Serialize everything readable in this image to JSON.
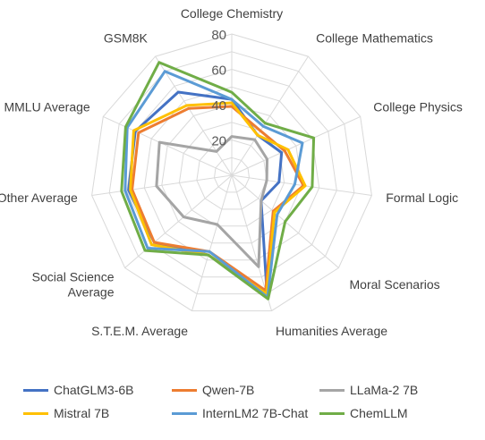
{
  "chart_data": {
    "type": "radar",
    "axes": [
      "College Chemistry",
      "College Mathematics",
      "College Physics",
      "Formal Logic",
      "Moral Scenarios",
      "Humanities Average",
      "S.T.E.M. Average",
      "Social Science Average",
      "Other Average",
      "MMLU Average",
      "GSM8K"
    ],
    "axis_label_lines": [
      [
        "College Chemistry"
      ],
      [
        "College Mathematics"
      ],
      [
        "College Physics"
      ],
      [
        "Formal Logic"
      ],
      [
        "Moral Scenarios"
      ],
      [
        "Humanities Average"
      ],
      [
        "S.T.E.M. Average"
      ],
      [
        "Social Science",
        "Average"
      ],
      [
        "Other Average"
      ],
      [
        "MMLU Average"
      ],
      [
        "GSM8K"
      ]
    ],
    "radial_ticks": [
      20,
      40,
      60,
      80
    ],
    "range": [
      0,
      80
    ],
    "grid": true,
    "legend_position": "bottom",
    "series": [
      {
        "name": "ChatGLM3-6B",
        "color": "#4472C4",
        "values": [
          43,
          27,
          31,
          27,
          22,
          71,
          47,
          58,
          59,
          60,
          56
        ]
      },
      {
        "name": "Qwen-7B",
        "color": "#ED7D31",
        "values": [
          39,
          30,
          33,
          41,
          31,
          68,
          45,
          58,
          57,
          58,
          45
        ]
      },
      {
        "name": "LLaMa-2 7B",
        "color": "#A5A5A5",
        "values": [
          22,
          24,
          22,
          20,
          22,
          54,
          29,
          36,
          43,
          45,
          16
        ]
      },
      {
        "name": "Mistral 7B",
        "color": "#FFC000",
        "values": [
          41,
          27,
          35,
          42,
          32,
          70,
          47,
          60,
          58,
          61,
          47
        ]
      },
      {
        "name": "InternLM2 7B-Chat",
        "color": "#5B9BD5",
        "values": [
          43,
          33,
          44,
          36,
          34,
          72,
          45,
          63,
          61,
          65,
          70
        ]
      },
      {
        "name": "ChemLLM",
        "color": "#70AD47",
        "values": [
          47,
          35,
          51,
          46,
          40,
          73,
          47,
          65,
          63,
          66,
          76
        ]
      }
    ]
  }
}
